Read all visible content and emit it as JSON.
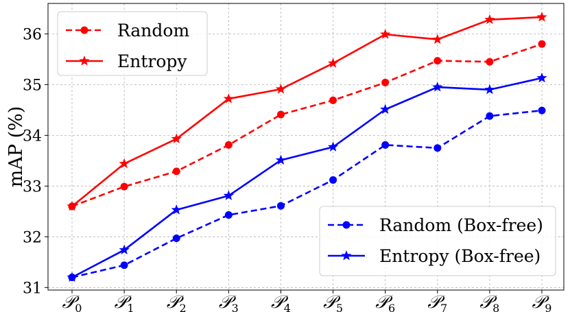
{
  "chart_data": {
    "type": "line",
    "categories": [
      "P0",
      "P1",
      "P2",
      "P3",
      "P4",
      "P5",
      "P6",
      "P7",
      "P8",
      "P9"
    ],
    "category_labels": [
      {
        "base": "𝒫",
        "sub": "0"
      },
      {
        "base": "𝒫",
        "sub": "1"
      },
      {
        "base": "𝒫",
        "sub": "2"
      },
      {
        "base": "𝒫",
        "sub": "3"
      },
      {
        "base": "𝒫",
        "sub": "4"
      },
      {
        "base": "𝒫",
        "sub": "5"
      },
      {
        "base": "𝒫",
        "sub": "6"
      },
      {
        "base": "𝒫",
        "sub": "7"
      },
      {
        "base": "𝒫",
        "sub": "8"
      },
      {
        "base": "𝒫",
        "sub": "9"
      }
    ],
    "ylabel": "mAP (%)",
    "ylim": [
      30.95,
      36.6
    ],
    "yticks": [
      31,
      32,
      33,
      34,
      35,
      36
    ],
    "grid": true,
    "series": [
      {
        "name": "Random",
        "color": "#ff0000",
        "dash": true,
        "marker": "circle",
        "legend_group": "top-left",
        "values": [
          32.6,
          32.99,
          33.29,
          33.81,
          34.41,
          34.69,
          35.04,
          35.47,
          35.45,
          35.8
        ]
      },
      {
        "name": "Entropy",
        "color": "#ff0000",
        "dash": false,
        "marker": "star",
        "legend_group": "top-left",
        "values": [
          32.6,
          33.44,
          33.93,
          34.72,
          34.91,
          35.42,
          35.99,
          35.89,
          36.28,
          36.33
        ]
      },
      {
        "name": "Random (Box-free)",
        "color": "#0000ff",
        "dash": true,
        "marker": "circle",
        "legend_group": "bottom-right",
        "values": [
          31.2,
          31.44,
          31.97,
          32.43,
          32.61,
          33.12,
          33.81,
          33.75,
          34.38,
          34.49
        ]
      },
      {
        "name": "Entropy (Box-free)",
        "color": "#0000ff",
        "dash": false,
        "marker": "star",
        "legend_group": "bottom-right",
        "values": [
          31.2,
          31.74,
          32.53,
          32.81,
          33.51,
          33.77,
          34.51,
          34.95,
          34.9,
          35.13
        ]
      }
    ]
  }
}
